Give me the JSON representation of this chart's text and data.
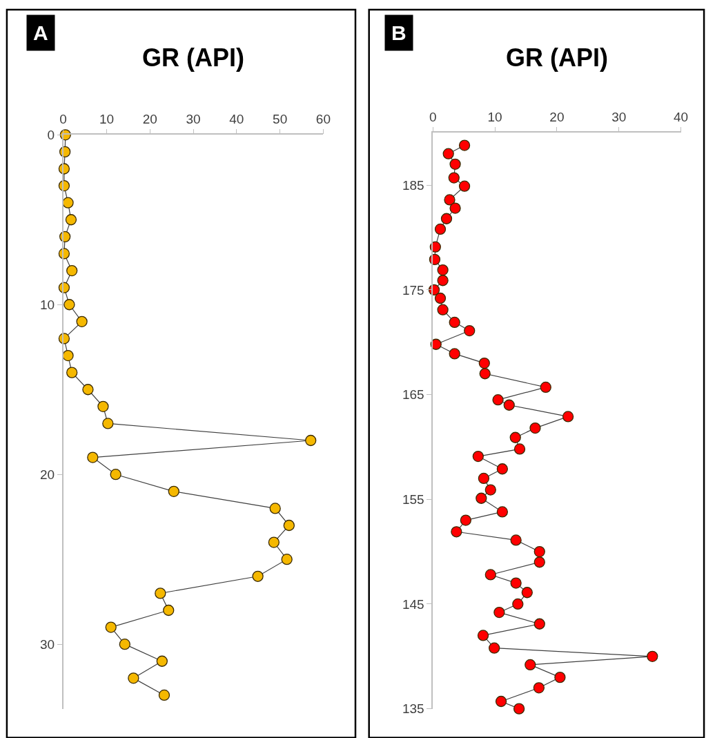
{
  "chart_data": [
    {
      "type": "line",
      "title": "GR (API)",
      "annotations": [
        "A"
      ],
      "marker": "circle",
      "line_style": "solid",
      "xlim": [
        0,
        60
      ],
      "xticks": [
        0,
        10,
        20,
        30,
        40,
        50,
        60
      ],
      "ylim": [
        33.8,
        0
      ],
      "yticks": [
        0,
        10,
        20,
        30
      ],
      "series": [
        {
          "color": "#f5b800",
          "x": [
            0.5,
            0.4,
            0.2,
            0.2,
            1.1,
            1.8,
            0.4,
            0.2,
            2.0,
            0.2,
            1.4,
            4.3,
            0.2,
            1.1,
            2.0,
            5.7,
            9.2,
            10.3,
            57.1,
            6.8,
            12.1,
            25.5,
            48.9,
            52.1,
            48.6,
            51.6,
            44.9,
            22.4,
            24.3,
            11.0,
            14.2,
            22.8,
            16.2,
            23.3
          ],
          "values": [
            0,
            1,
            2,
            3,
            4,
            5,
            6,
            7,
            8,
            9,
            10,
            11,
            12,
            13,
            14,
            15,
            16,
            17,
            18,
            19,
            20,
            21,
            22,
            23,
            24,
            25,
            26,
            27,
            28,
            29,
            30,
            31,
            32,
            33
          ]
        }
      ]
    },
    {
      "type": "line",
      "title": "GR (API)",
      "annotations": [
        "B"
      ],
      "marker": "circle",
      "line_style": "solid",
      "xlim": [
        0,
        40
      ],
      "xticks": [
        0,
        10,
        20,
        30,
        40
      ],
      "ylim": [
        135,
        190
      ],
      "yticks": [
        135,
        145,
        155,
        165,
        175,
        185
      ],
      "series": [
        {
          "color": "#ff0000",
          "x": [
            5.1,
            2.5,
            3.6,
            3.4,
            5.1,
            2.7,
            3.6,
            2.2,
            1.2,
            0.4,
            0.3,
            1.6,
            1.6,
            0.2,
            1.2,
            1.6,
            3.5,
            5.9,
            0.5,
            3.5,
            8.3,
            8.4,
            18.2,
            10.5,
            12.3,
            21.8,
            16.5,
            13.3,
            14.0,
            7.3,
            11.2,
            8.2,
            9.3,
            7.8,
            11.2,
            5.3,
            3.8,
            13.4,
            17.2,
            17.2,
            9.3,
            13.4,
            15.2,
            13.7,
            10.7,
            17.2,
            8.1,
            9.9,
            35.4,
            15.7,
            20.5,
            17.1,
            11.0,
            13.9
          ],
          "values": [
            188.8,
            188.0,
            187.0,
            185.7,
            184.9,
            183.6,
            182.8,
            181.8,
            180.8,
            179.1,
            177.9,
            176.9,
            175.9,
            175.0,
            174.2,
            173.1,
            171.9,
            171.1,
            169.8,
            168.9,
            168.0,
            167.0,
            165.7,
            164.5,
            164.0,
            162.9,
            161.8,
            160.9,
            159.8,
            159.1,
            157.9,
            157.0,
            155.9,
            155.1,
            153.8,
            153.0,
            151.9,
            151.1,
            150.0,
            149.0,
            147.8,
            147.0,
            146.1,
            145.0,
            144.2,
            143.1,
            142.0,
            140.8,
            140.0,
            139.2,
            138.0,
            137.0,
            135.7,
            135.0
          ]
        }
      ]
    }
  ]
}
